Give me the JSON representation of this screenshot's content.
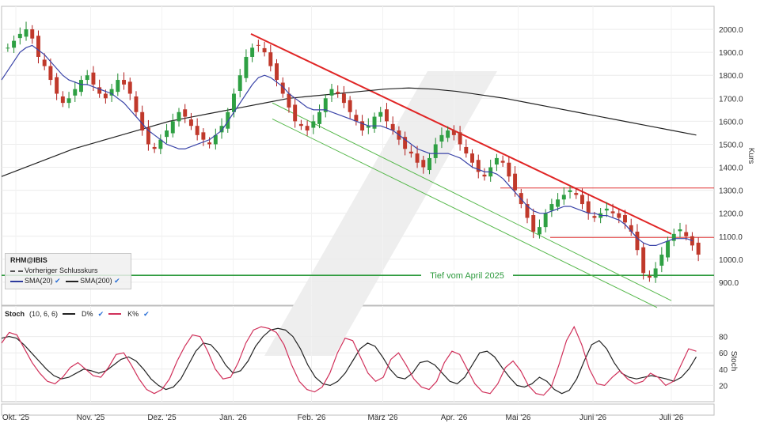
{
  "chart_data": [
    {
      "type": "candlestick",
      "symbol": "RHM@IBIS",
      "ylabel": "Kurs",
      "ylim": [
        800,
        2100
      ],
      "yticks": [
        "900.0",
        "1000.0",
        "1100.0",
        "1200.0",
        "1300.0",
        "1400.0",
        "1500.0",
        "1600.0",
        "1700.0",
        "1800.0",
        "1900.0",
        "2000.0"
      ],
      "xticks": [
        "Okt. '25",
        "Nov. '25",
        "Dez. '25",
        "Jan. '26",
        "Feb. '26",
        "März '26",
        "Apr. '26",
        "Mai '26",
        "Juni '26",
        "Juli '26"
      ],
      "legend": {
        "symbol": "RHM@IBIS",
        "prev_close": "Vorheriger Schlusskurs",
        "sma20": "SMA(20)",
        "sma200": "SMA(200)"
      },
      "annotation": "Tief vom April 2025",
      "support_level": 930,
      "horizontal_levels": [
        1310,
        1095
      ],
      "trendline": {
        "from": [
          0.35,
          1980
        ],
        "to": [
          0.94,
          1110
        ]
      },
      "channel_lines": [
        {
          "from": [
            0.38,
            1680
          ],
          "to": [
            0.94,
            820
          ]
        },
        {
          "from": [
            0.38,
            1610
          ],
          "to": [
            0.92,
            790
          ]
        }
      ],
      "close_series": [
        1920,
        1950,
        1980,
        2000,
        1960,
        1880,
        1840,
        1780,
        1720,
        1680,
        1700,
        1740,
        1780,
        1800,
        1760,
        1720,
        1700,
        1740,
        1780,
        1760,
        1720,
        1640,
        1560,
        1500,
        1480,
        1520,
        1560,
        1600,
        1640,
        1620,
        1580,
        1540,
        1520,
        1500,
        1540,
        1580,
        1640,
        1720,
        1800,
        1880,
        1920,
        1930,
        1900,
        1840,
        1780,
        1720,
        1660,
        1600,
        1580,
        1560,
        1600,
        1640,
        1700,
        1740,
        1720,
        1680,
        1640,
        1600,
        1560,
        1580,
        1620,
        1640,
        1600,
        1560,
        1520,
        1480,
        1460,
        1420,
        1400,
        1440,
        1500,
        1540,
        1560,
        1540,
        1500,
        1460,
        1420,
        1380,
        1360,
        1400,
        1440,
        1420,
        1360,
        1300,
        1240,
        1180,
        1120,
        1140,
        1200,
        1240,
        1260,
        1280,
        1300,
        1280,
        1240,
        1200,
        1180,
        1200,
        1220,
        1200,
        1180,
        1160,
        1120,
        1040,
        940,
        920,
        960,
        1020,
        1080,
        1110,
        1130,
        1100,
        1060,
        1020
      ],
      "sma20_series": [
        1780,
        1820,
        1860,
        1900,
        1920,
        1930,
        1910,
        1890,
        1860,
        1830,
        1800,
        1780,
        1770,
        1760,
        1760,
        1750,
        1740,
        1730,
        1720,
        1700,
        1680,
        1650,
        1620,
        1590,
        1560,
        1540,
        1520,
        1500,
        1490,
        1480,
        1480,
        1490,
        1500,
        1510,
        1520,
        1540,
        1560,
        1600,
        1640,
        1680,
        1720,
        1760,
        1790,
        1800,
        1790,
        1770,
        1750,
        1720,
        1700,
        1680,
        1660,
        1650,
        1650,
        1650,
        1640,
        1630,
        1620,
        1610,
        1600,
        1590,
        1580,
        1580,
        1580,
        1570,
        1560,
        1540,
        1520,
        1500,
        1480,
        1470,
        1460,
        1460,
        1460,
        1460,
        1450,
        1440,
        1420,
        1400,
        1390,
        1380,
        1380,
        1370,
        1350,
        1320,
        1290,
        1260,
        1230,
        1210,
        1200,
        1200,
        1210,
        1220,
        1230,
        1230,
        1220,
        1210,
        1200,
        1200,
        1190,
        1190,
        1180,
        1170,
        1150,
        1120,
        1090,
        1070,
        1060,
        1060,
        1070,
        1080,
        1090,
        1090,
        1090,
        1080
      ],
      "sma200_series": [
        1360,
        1400,
        1440,
        1480,
        1510,
        1540,
        1570,
        1600,
        1620,
        1640,
        1660,
        1680,
        1700,
        1710,
        1720,
        1730,
        1740,
        1745,
        1740,
        1730,
        1715,
        1700,
        1680,
        1660,
        1640,
        1620,
        1600,
        1580,
        1560,
        1540
      ]
    },
    {
      "type": "line",
      "title": "Stoch",
      "params": "(10, 6, 6)",
      "ylabel": "Stoch",
      "ylim": [
        0,
        100
      ],
      "yticks": [
        20,
        40,
        60,
        80
      ],
      "series": [
        {
          "name": "D%",
          "color": "#222222",
          "values": [
            78,
            80,
            78,
            70,
            60,
            50,
            40,
            32,
            28,
            30,
            35,
            40,
            38,
            35,
            38,
            45,
            52,
            55,
            50,
            40,
            28,
            20,
            15,
            18,
            28,
            45,
            62,
            72,
            70,
            60,
            45,
            35,
            38,
            50,
            68,
            80,
            88,
            90,
            88,
            80,
            65,
            45,
            30,
            22,
            20,
            25,
            35,
            50,
            65,
            72,
            68,
            55,
            40,
            30,
            28,
            35,
            48,
            50,
            45,
            35,
            25,
            22,
            30,
            45,
            60,
            62,
            55,
            42,
            30,
            20,
            18,
            22,
            30,
            25,
            15,
            10,
            14,
            28,
            50,
            70,
            75,
            65,
            48,
            35,
            30,
            28,
            30,
            32,
            30,
            28,
            25,
            30,
            40,
            55
          ]
        },
        {
          "name": "K%",
          "color": "#d0305a",
          "values": [
            72,
            85,
            82,
            65,
            48,
            35,
            25,
            22,
            30,
            42,
            48,
            40,
            32,
            30,
            42,
            58,
            60,
            45,
            28,
            15,
            10,
            15,
            28,
            50,
            68,
            82,
            80,
            62,
            40,
            28,
            30,
            48,
            72,
            88,
            92,
            90,
            85,
            70,
            45,
            25,
            15,
            12,
            18,
            35,
            60,
            78,
            75,
            55,
            35,
            25,
            30,
            52,
            60,
            45,
            28,
            18,
            15,
            25,
            48,
            62,
            58,
            40,
            22,
            12,
            10,
            22,
            42,
            50,
            38,
            20,
            10,
            8,
            18,
            45,
            75,
            92,
            70,
            40,
            22,
            20,
            30,
            38,
            28,
            22,
            25,
            35,
            30,
            20,
            25,
            45,
            65,
            62
          ]
        }
      ]
    }
  ],
  "watermark_icon": "logo-slash-icon"
}
